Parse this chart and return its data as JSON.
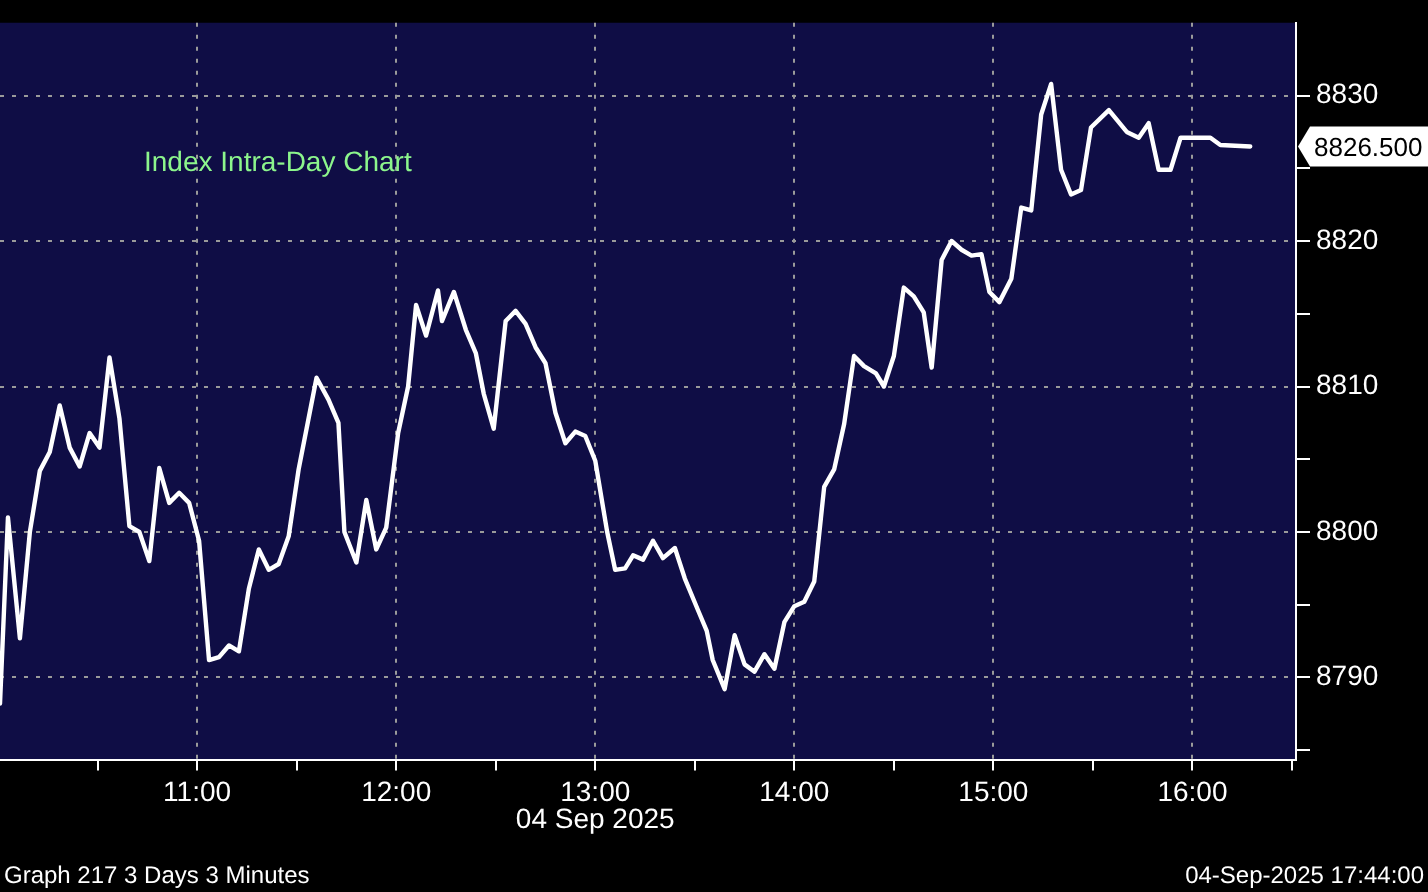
{
  "chart_data": {
    "type": "line",
    "title": "Index Intra-Day Chart",
    "xlabel": "04 Sep 2025",
    "x": [
      10.01,
      10.05,
      10.11,
      10.16,
      10.21,
      10.26,
      10.31,
      10.36,
      10.41,
      10.46,
      10.51,
      10.56,
      10.61,
      10.66,
      10.71,
      10.76,
      10.81,
      10.86,
      10.91,
      10.96,
      11.01,
      11.06,
      11.11,
      11.16,
      11.21,
      11.26,
      11.31,
      11.36,
      11.41,
      11.46,
      11.51,
      11.56,
      11.6,
      11.66,
      11.71,
      11.74,
      11.8,
      11.85,
      11.9,
      11.95,
      12.01,
      12.06,
      12.1,
      12.15,
      12.21,
      12.23,
      12.29,
      12.35,
      12.4,
      12.44,
      12.49,
      12.55,
      12.6,
      12.65,
      12.7,
      12.75,
      12.8,
      12.85,
      12.9,
      12.95,
      13.0,
      13.06,
      13.1,
      13.15,
      13.19,
      13.24,
      13.29,
      13.34,
      13.4,
      13.45,
      13.52,
      13.56,
      13.59,
      13.65,
      13.7,
      13.75,
      13.8,
      13.85,
      13.9,
      13.95,
      14.0,
      14.05,
      14.1,
      14.15,
      14.2,
      14.25,
      14.3,
      14.35,
      14.41,
      14.45,
      14.5,
      14.55,
      14.6,
      14.65,
      14.69,
      14.74,
      14.79,
      14.84,
      14.89,
      14.94,
      14.98,
      15.03,
      15.09,
      15.14,
      15.19,
      15.24,
      15.29,
      15.34,
      15.39,
      15.44,
      15.49,
      15.58,
      15.67,
      15.73,
      15.78,
      15.83,
      15.89,
      15.94,
      16.09,
      16.14,
      16.29
    ],
    "series": [
      {
        "color": "#ffffff",
        "values": [
          8788.2,
          8801.0,
          8792.7,
          8800.0,
          8804.2,
          8805.5,
          8808.7,
          8805.8,
          8804.5,
          8806.8,
          8805.8,
          8812.0,
          8807.8,
          8800.4,
          8800.0,
          8798.0,
          8804.4,
          8802.0,
          8802.7,
          8802.0,
          8799.4,
          8791.2,
          8791.4,
          8792.2,
          8791.8,
          8796.1,
          8798.8,
          8797.4,
          8797.8,
          8799.7,
          8804.3,
          8807.8,
          8810.6,
          8809.1,
          8807.5,
          8800.0,
          8797.9,
          8802.2,
          8798.8,
          8800.3,
          8806.8,
          8810.0,
          8815.6,
          8813.5,
          8816.6,
          8814.5,
          8816.5,
          8813.9,
          8812.3,
          8809.5,
          8807.1,
          8814.5,
          8815.2,
          8814.3,
          8812.7,
          8811.6,
          8808.2,
          8806.1,
          8806.9,
          8806.6,
          8804.9,
          8800.0,
          8797.4,
          8797.5,
          8798.4,
          8798.1,
          8799.4,
          8798.2,
          8798.9,
          8796.8,
          8794.5,
          8793.2,
          8791.2,
          8789.2,
          8792.9,
          8790.9,
          8790.4,
          8791.6,
          8790.6,
          8793.8,
          8794.9,
          8795.2,
          8796.6,
          8803.1,
          8804.3,
          8807.4,
          8812.1,
          8811.4,
          8810.9,
          8810.0,
          8812.1,
          8816.8,
          8816.2,
          8815.1,
          8811.3,
          8818.7,
          8820.0,
          8819.4,
          8819.0,
          8819.1,
          8816.5,
          8815.8,
          8817.4,
          8822.3,
          8822.1,
          8828.7,
          8830.8,
          8824.9,
          8823.2,
          8823.5,
          8827.8,
          8829.0,
          8827.5,
          8827.1,
          8828.1,
          8824.9,
          8824.9,
          8827.1,
          8827.1,
          8826.6,
          8826.5
        ]
      }
    ],
    "xlim": [
      10.01,
      16.52
    ],
    "xticks": [
      {
        "value": 10.5,
        "label": null
      },
      {
        "value": 11,
        "label": "11:00"
      },
      {
        "value": 11.5,
        "label": null
      },
      {
        "value": 12,
        "label": "12:00"
      },
      {
        "value": 12.5,
        "label": null
      },
      {
        "value": 13,
        "label": "13:00"
      },
      {
        "value": 13.5,
        "label": null
      },
      {
        "value": 14,
        "label": "14:00"
      },
      {
        "value": 14.5,
        "label": null
      },
      {
        "value": 15,
        "label": "15:00"
      },
      {
        "value": 15.5,
        "label": null
      },
      {
        "value": 16,
        "label": "16:00"
      },
      {
        "value": 16.5,
        "label": null
      }
    ],
    "ylim": [
      8784.3,
      8835
    ],
    "yticks": [
      {
        "value": 8785,
        "label": null
      },
      8790,
      {
        "value": 8795,
        "label": null
      },
      8800,
      {
        "value": 8805,
        "label": null
      },
      8810,
      {
        "value": 8815,
        "label": null
      },
      8820,
      {
        "value": 8825,
        "label": null
      },
      8830
    ],
    "grid": true,
    "legend": false,
    "marker": "none",
    "line_style": "solid",
    "annotations": [
      "8826.500",
      "Graph 217 3 Days 3 Minutes",
      "04-Sep-2025 17:44:00"
    ]
  }
}
